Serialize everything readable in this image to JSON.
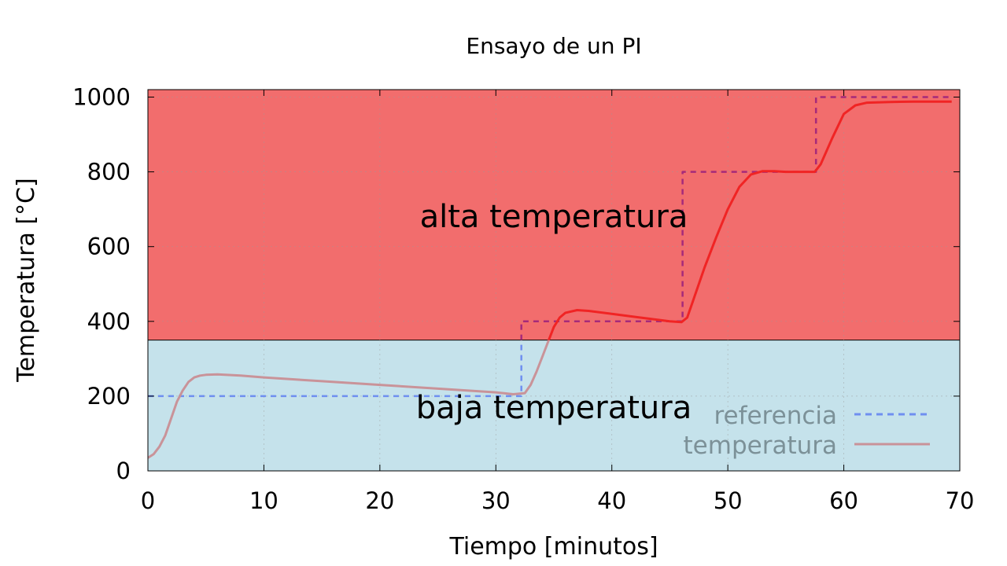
{
  "chart_data": {
    "type": "line",
    "title": "Ensayo de un PI",
    "xlabel": "Tiempo [minutos]",
    "ylabel": "Temperatura [°C]",
    "xlim": [
      0,
      70
    ],
    "ylim": [
      0,
      1020
    ],
    "x_ticks": [
      "0",
      "10",
      "20",
      "30",
      "40",
      "50",
      "60",
      "70"
    ],
    "y_ticks": [
      "0",
      "200",
      "400",
      "600",
      "800",
      "1000"
    ],
    "grid": true,
    "legend_position": "bottom-right",
    "regions": [
      {
        "label": "alta temperatura",
        "from": 350,
        "to": 1020,
        "color": "#f26d6d"
      },
      {
        "label": "baja temperatura",
        "from": 0,
        "to": 350,
        "color": "#c5e2eb"
      }
    ],
    "series": [
      {
        "name": "referencia",
        "style": "dashed",
        "color_low": "#6f8ff0",
        "color_high": "#a62a7a",
        "x": [
          0,
          32.2,
          32.2,
          46.1,
          46.1,
          57.6,
          57.6,
          69.3
        ],
        "y": [
          200,
          200,
          400,
          400,
          800,
          800,
          1000,
          1000
        ]
      },
      {
        "name": "temperatura",
        "style": "solid",
        "color_low": "#c99399",
        "color_high": "#f02424",
        "x": [
          0,
          0.5,
          1,
          1.5,
          2,
          2.5,
          3,
          3.5,
          4,
          4.5,
          5,
          6,
          8,
          10,
          15,
          20,
          25,
          30,
          31.5,
          32.5,
          33,
          33.5,
          34,
          34.5,
          35,
          35.5,
          36,
          37,
          38,
          40,
          42,
          44,
          45,
          46,
          46.5,
          47,
          48,
          49,
          50,
          51,
          52,
          53,
          54,
          55,
          56,
          57.5,
          58,
          59,
          60,
          61,
          62,
          64,
          66,
          68,
          69.3
        ],
        "y": [
          35,
          45,
          65,
          95,
          140,
          185,
          215,
          238,
          250,
          255,
          257,
          258,
          255,
          250,
          240,
          230,
          220,
          210,
          205,
          208,
          230,
          265,
          305,
          345,
          385,
          410,
          423,
          430,
          428,
          420,
          412,
          404,
          400,
          398,
          410,
          455,
          545,
          625,
          700,
          760,
          793,
          802,
          802,
          800,
          800,
          800,
          820,
          890,
          955,
          978,
          985,
          987,
          988,
          988,
          988
        ]
      }
    ],
    "legend": [
      {
        "label": "referencia",
        "style": "dashed",
        "color": "#6f8ff0"
      },
      {
        "label": "temperatura",
        "style": "solid",
        "color": "#c99399"
      }
    ]
  }
}
